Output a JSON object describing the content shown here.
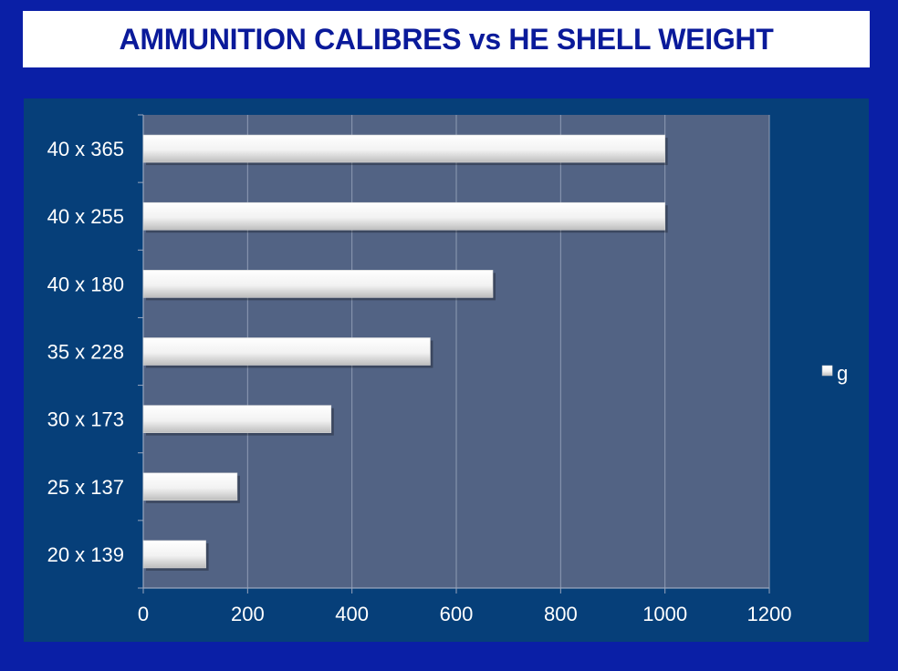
{
  "title": "AMMUNITION CALIBRES vs HE SHELL WEIGHT",
  "chart_data": {
    "type": "bar",
    "orientation": "horizontal",
    "categories": [
      "20 x 139",
      "25 x 137",
      "30 x 173",
      "35 x 228",
      "40 x 180",
      "40 x 255",
      "40 x 365"
    ],
    "series": [
      {
        "name": "g",
        "values": [
          120,
          180,
          360,
          550,
          670,
          1000,
          1000
        ]
      }
    ],
    "xticks": [
      "0",
      "200",
      "400",
      "600",
      "800",
      "1000",
      "1200"
    ],
    "xlim": [
      0,
      1200
    ],
    "grid": true,
    "legend_position": "right",
    "colors": {
      "background": "#0a1fa6",
      "panel": "#063f79",
      "plot_area": "#526384",
      "bar": "#f4f4f4",
      "text": "#ffffff",
      "title_text": "#0a1a9a"
    }
  }
}
